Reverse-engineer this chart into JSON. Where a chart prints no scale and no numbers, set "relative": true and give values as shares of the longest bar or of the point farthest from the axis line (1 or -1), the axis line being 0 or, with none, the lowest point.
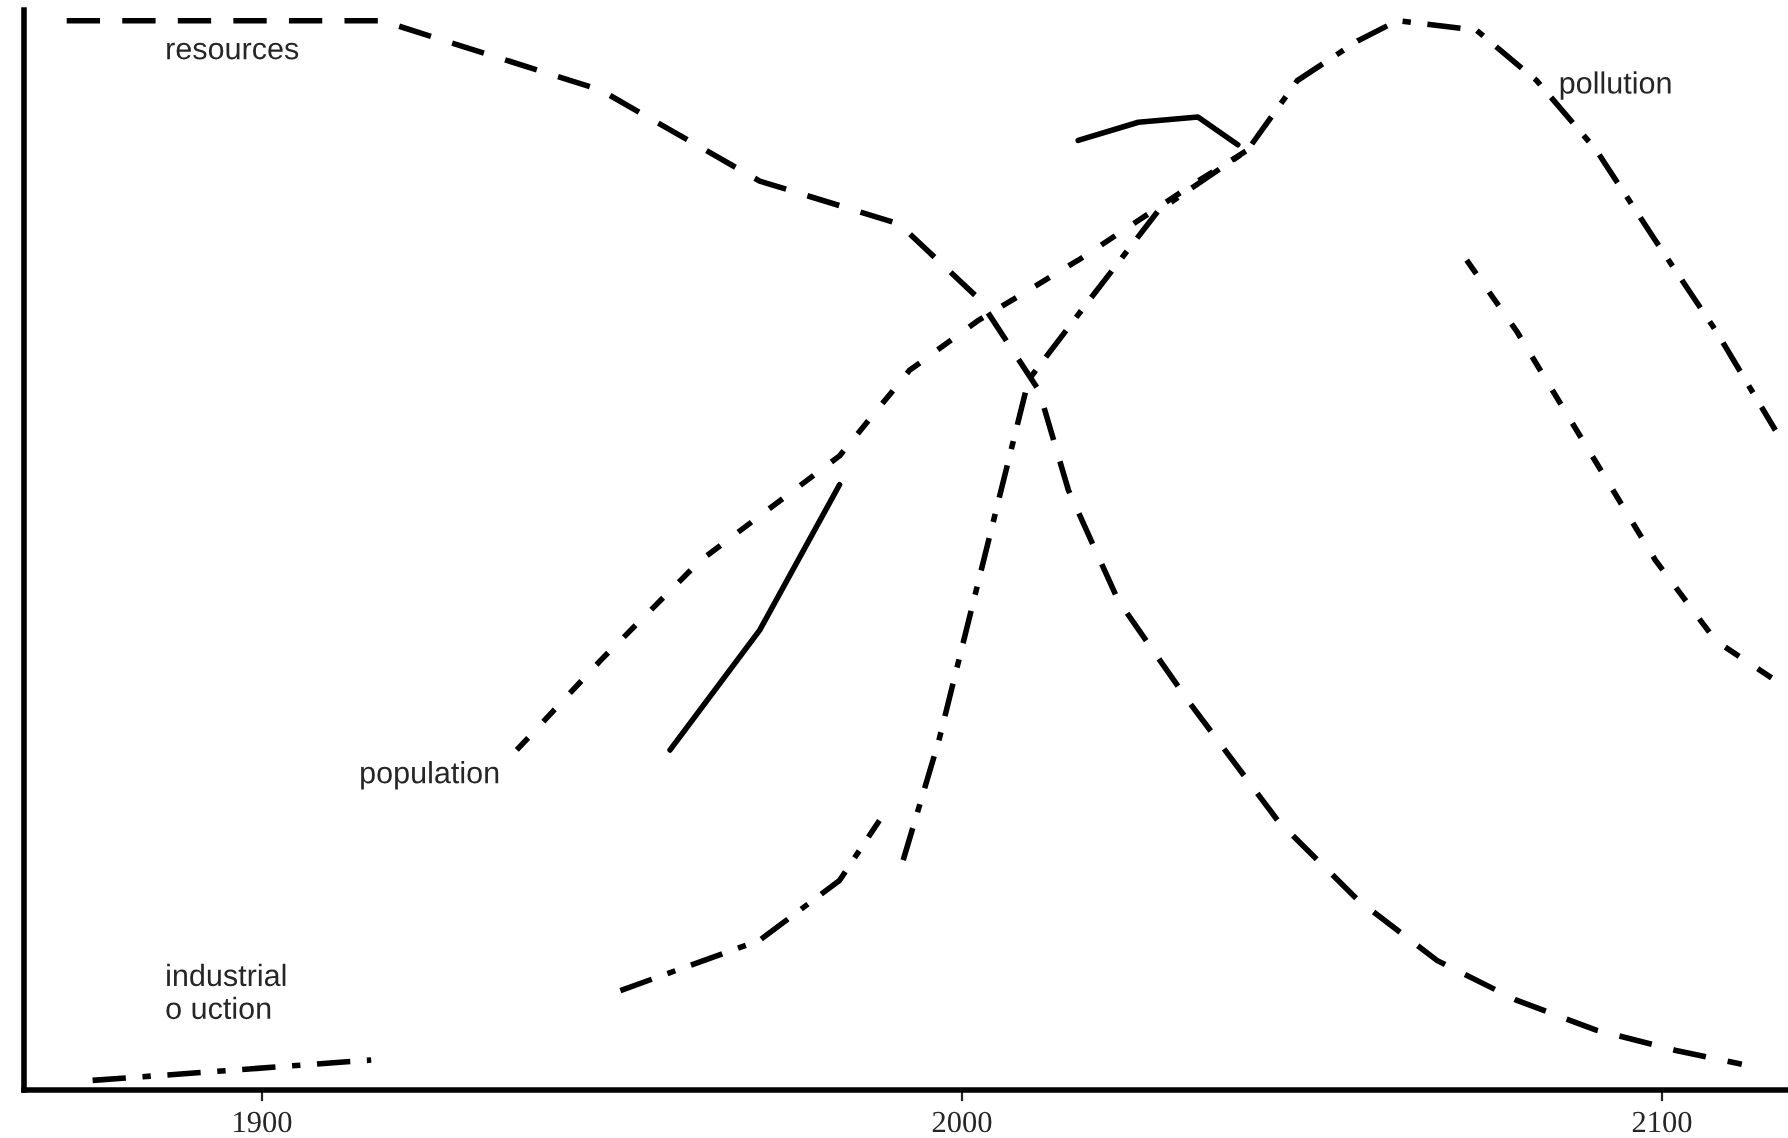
{
  "chart_data": {
    "type": "line",
    "relative": true,
    "xlim": [
      1866,
      2118
    ],
    "xticks": [
      1900,
      2000,
      2100
    ],
    "tick_labels": "x",
    "grid": false,
    "legend": false,
    "series": [
      {
        "name": "resources",
        "color": "#000000",
        "line_style": "dashed",
        "x": [
          1872.1,
          1917.1,
          1948.4,
          1971.1,
          1991.0,
          2002.4,
          2011.0,
          2015.2,
          2022.3,
          2032.3,
          2045.1,
          2056.5,
          2067.9,
          2079.2,
          2090.6,
          2102.0,
          2111.4
        ],
        "values": [
          1.0,
          1.0,
          0.935,
          0.85,
          0.81,
          0.74,
          0.654,
          0.561,
          0.458,
          0.364,
          0.252,
          0.178,
          0.121,
          0.084,
          0.056,
          0.037,
          0.024
        ]
      },
      {
        "color": "#000000",
        "line_style": "solid",
        "x": [
          1958.3,
          1971.1,
          1982.5,
          2000.0,
          2016.6,
          2025.2,
          2033.7,
          2039.4
        ],
        "values": [
          0.318,
          0.43,
          0.566,
          null,
          0.888,
          0.905,
          0.91,
          0.884
        ]
      },
      {
        "name": "industrial\no uction",
        "color": "#000000",
        "line_style": "dashdot",
        "x": [
          1875.8,
          1915.6,
          1930.0,
          1951.2,
          1971.1,
          1982.5,
          1988.2
        ],
        "values": [
          0.009,
          0.028,
          null,
          0.093,
          0.14,
          0.196,
          0.252
        ]
      },
      {
        "name": "pollution",
        "color": "#000000",
        "line_style": "dashdot",
        "x": [
          1991.6,
          1996.7,
          2002.4,
          2009.5,
          2018.1,
          2028.0,
          2040.8,
          2047.9,
          2056.5,
          2062.2,
          2073.5,
          2082.1,
          2090.6,
          2099.1,
          2107.7,
          2116.2
        ],
        "values": [
          0.215,
          0.327,
          0.477,
          0.664,
          0.738,
          0.822,
          0.879,
          0.944,
          0.981,
          1.0,
          0.991,
          0.944,
          0.879,
          0.794,
          0.71,
          0.617
        ]
      },
      {
        "color": "#000000",
        "line_style": "dotted",
        "x": [
          2072.1,
          2079.2,
          2087.8,
          2099.1,
          2107.7,
          2116.2
        ],
        "values": [
          0.776,
          0.71,
          0.617,
          0.495,
          0.42,
          0.383
        ]
      },
      {
        "name": "population",
        "color": "#000000",
        "line_style": "dotted",
        "x": [
          1936.4,
          1948.4,
          1962.6,
          1982.5,
          1992.5,
          2002.4,
          2016.6,
          2033.7,
          2040.8
        ],
        "values": [
          0.318,
          0.402,
          0.495,
          0.593,
          0.673,
          0.72,
          0.776,
          0.85,
          0.879
        ]
      }
    ]
  }
}
